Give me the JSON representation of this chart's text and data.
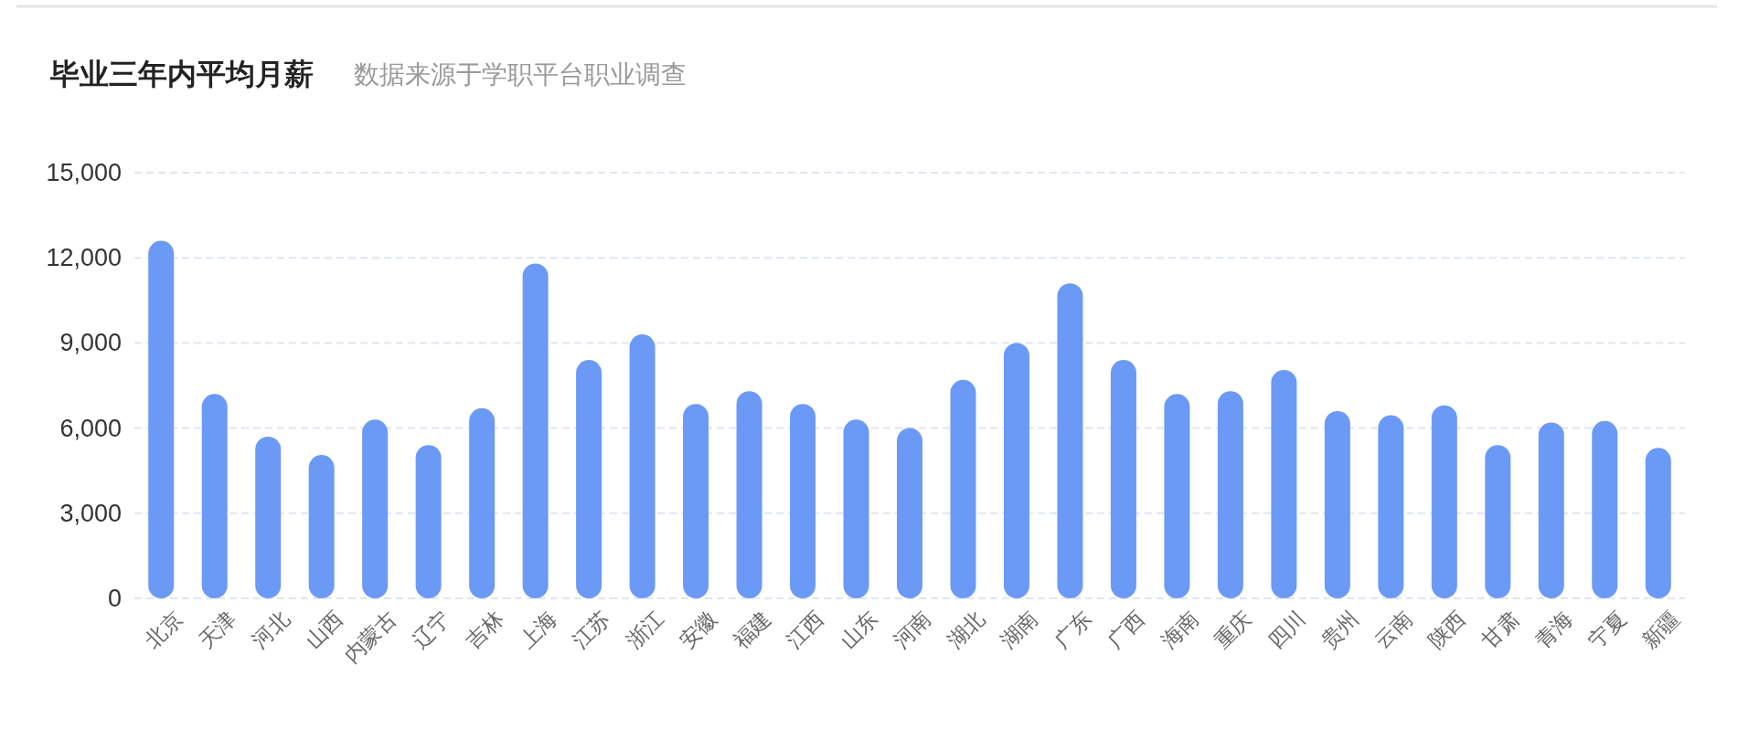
{
  "chart_data": {
    "type": "bar",
    "title": "毕业三年内平均月薪",
    "subtitle": "数据来源于学职平台职业调查",
    "categories": [
      "北京",
      "天津",
      "河北",
      "山西",
      "内蒙古",
      "辽宁",
      "吉林",
      "上海",
      "江苏",
      "浙江",
      "安徽",
      "福建",
      "江西",
      "山东",
      "河南",
      "湖北",
      "湖南",
      "广东",
      "广西",
      "海南",
      "重庆",
      "四川",
      "贵州",
      "云南",
      "陕西",
      "甘肃",
      "青海",
      "宁夏",
      "新疆"
    ],
    "values": [
      12600,
      7200,
      5700,
      5050,
      6300,
      5400,
      6700,
      11800,
      8400,
      9300,
      6850,
      7300,
      6850,
      6300,
      6000,
      7700,
      9000,
      11100,
      8400,
      7200,
      7300,
      8050,
      6600,
      6450,
      6800,
      5400,
      6200,
      6250,
      5300
    ],
    "color": "#6b99f6",
    "ylim": [
      0,
      15000
    ],
    "yticks": [
      {
        "value": 0,
        "label": "0"
      },
      {
        "value": 3000,
        "label": "3,000"
      },
      {
        "value": 6000,
        "label": "6,000"
      },
      {
        "value": 9000,
        "label": "9,000"
      },
      {
        "value": 12000,
        "label": "12,000"
      },
      {
        "value": 15000,
        "label": "15,000"
      }
    ],
    "grid": "y"
  }
}
